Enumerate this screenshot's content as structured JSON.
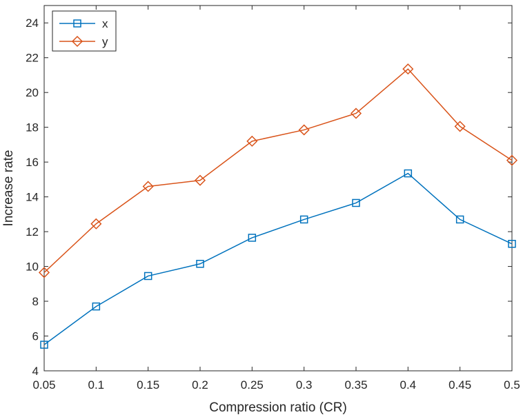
{
  "chart_data": {
    "type": "line",
    "title": "",
    "xlabel": "Compression ratio (CR)",
    "ylabel": "Increase rate",
    "x": [
      0.05,
      0.1,
      0.15,
      0.2,
      0.25,
      0.3,
      0.35,
      0.4,
      0.45,
      0.5
    ],
    "xticks": [
      "0.05",
      "0.1",
      "0.15",
      "0.2",
      "0.25",
      "0.3",
      "0.35",
      "0.4",
      "0.45",
      "0.5"
    ],
    "yticks": [
      4,
      6,
      8,
      10,
      12,
      14,
      16,
      18,
      20,
      22,
      24
    ],
    "xlim": [
      0.05,
      0.5
    ],
    "ylim": [
      4,
      25
    ],
    "grid": false,
    "legend_position": "top-left",
    "series": [
      {
        "name": "x",
        "color": "#0072BD",
        "marker": "square",
        "values": [
          5.5,
          7.7,
          9.45,
          10.15,
          11.65,
          12.7,
          13.65,
          15.35,
          12.7,
          11.3
        ]
      },
      {
        "name": "y",
        "color": "#D95319",
        "marker": "diamond",
        "values": [
          9.65,
          12.45,
          14.6,
          14.95,
          17.2,
          17.85,
          18.8,
          21.35,
          18.05,
          16.1
        ]
      }
    ]
  }
}
